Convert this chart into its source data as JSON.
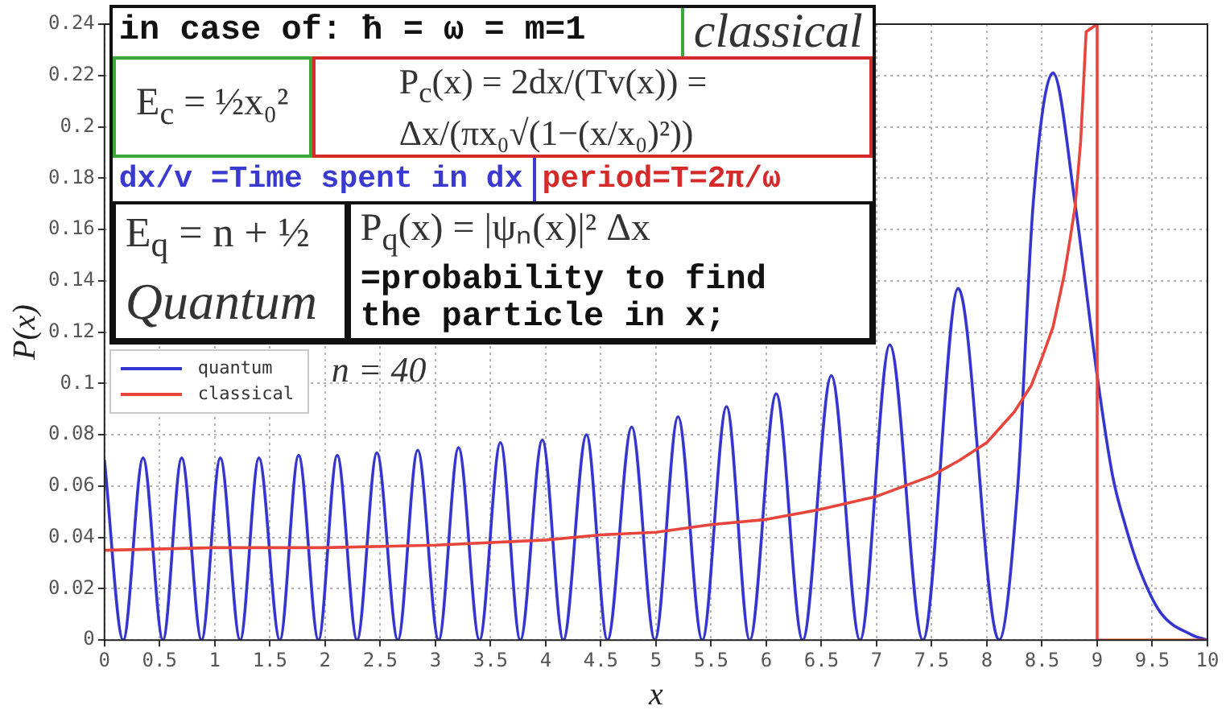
{
  "chart_data": {
    "type": "line",
    "xlabel": "x",
    "ylabel": "P(x)",
    "annotations": [
      "in case of: ħ = ω = m=1",
      "classical",
      "E$_{c}$ = ½x₀²",
      "P$_{c}$(x) = 2dx/(Tv(x)) = Δx/(πx₀√(1−(x/x₀)²))",
      "dx/v =Time spent in dx",
      "period=T=2π/ω",
      "E$_{q}$ = n + ½",
      "Quantum",
      "P$_{q}$(x) = |ψₙ(x)|² Δx",
      "=probability to find the particle in x;",
      "n = 40"
    ],
    "series": [
      {
        "name": "quantum",
        "color": "#3535d0",
        "x": [
          0,
          0.17,
          0.35,
          0.53,
          0.7,
          0.88,
          1.05,
          1.23,
          1.4,
          1.59,
          1.76,
          1.94,
          2.11,
          2.29,
          2.47,
          2.66,
          2.84,
          3.03,
          3.21,
          3.4,
          3.59,
          3.77,
          3.97,
          4.16,
          4.37,
          4.56,
          4.78,
          4.99,
          5.2,
          5.42,
          5.64,
          5.85,
          6.09,
          6.33,
          6.59,
          6.85,
          7.12,
          7.42,
          7.74,
          8.11,
          8.28,
          8.42,
          8.6,
          8.8,
          9,
          9.14,
          9.26,
          9.38,
          9.57,
          9.86,
          10
        ],
        "values": [
          0.07,
          0,
          0.071,
          0,
          0.071,
          0,
          0.071,
          0,
          0.071,
          0,
          0.072,
          0,
          0.072,
          0,
          0.073,
          0,
          0.074,
          0,
          0.075,
          0,
          0.077,
          0,
          0.078,
          0,
          0.08,
          0,
          0.083,
          0,
          0.087,
          0,
          0.091,
          0,
          0.096,
          0,
          0.103,
          0,
          0.115,
          0,
          0.137,
          0,
          0.06,
          0.17,
          0.221,
          0.17,
          0.103,
          0.064,
          0.044,
          0.028,
          0.011,
          0.002,
          0
        ]
      },
      {
        "name": "classical",
        "color": "#e8453c",
        "x": [
          0,
          1,
          2,
          3,
          4,
          4.5,
          5,
          5.5,
          6,
          6.5,
          7,
          7.5,
          7.75,
          8,
          8.25,
          8.4,
          8.5,
          8.6,
          8.7,
          8.75,
          8.8,
          8.85,
          8.9,
          9,
          9,
          10
        ],
        "values": [
          0.035,
          0.036,
          0.036,
          0.037,
          0.039,
          0.041,
          0.042,
          0.045,
          0.047,
          0.051,
          0.056,
          0.064,
          0.07,
          0.077,
          0.089,
          0.099,
          0.11,
          0.122,
          0.142,
          0.155,
          0.169,
          0.194,
          0.237,
          0.24,
          0,
          0
        ]
      }
    ],
    "xlim": [
      0,
      10
    ],
    "ylim": [
      0,
      0.24
    ],
    "xticks": [
      0,
      0.5,
      1,
      1.5,
      2,
      2.5,
      3,
      3.5,
      4,
      4.5,
      5,
      5.5,
      6,
      6.5,
      7,
      7.5,
      8,
      8.5,
      9,
      9.5,
      10
    ],
    "yticks": [
      0,
      0.02,
      0.04,
      0.06,
      0.08,
      0.1,
      0.12,
      0.14,
      0.16,
      0.18,
      0.2,
      0.22,
      0.24
    ],
    "grid": true,
    "legend": "left"
  }
}
